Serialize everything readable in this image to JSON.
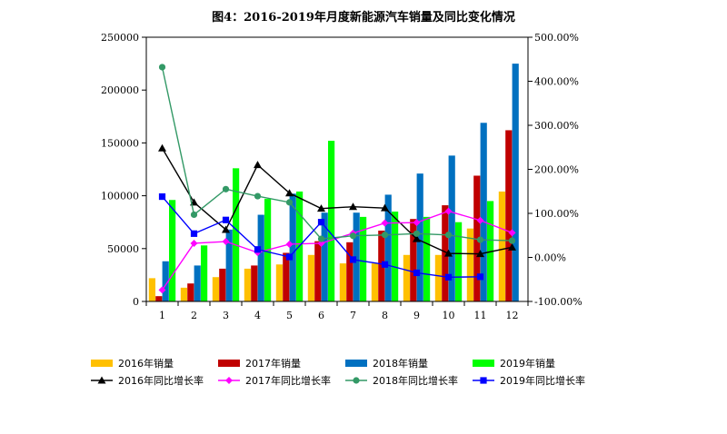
{
  "chart_data": {
    "type": "bar",
    "title": "图4：2016-2019年月度新能源汽车销量及同比变化情况",
    "categories": [
      "1",
      "2",
      "3",
      "4",
      "5",
      "6",
      "7",
      "8",
      "9",
      "10",
      "11",
      "12"
    ],
    "left_axis": {
      "ylim": [
        0,
        250000
      ],
      "ticks": [
        "0",
        "50000",
        "100000",
        "150000",
        "200000",
        "250000"
      ]
    },
    "right_axis": {
      "ylim": [
        -100,
        500
      ],
      "ticks": [
        "-100.00%",
        "0.00%",
        "100.00%",
        "200.00%",
        "300.00%",
        "400.00%",
        "500.00%"
      ]
    },
    "grid": false,
    "legend_position": "bottom",
    "bar_series": [
      {
        "name": "2016年销量",
        "color": "#FFC000",
        "values": [
          22000,
          13000,
          23000,
          31000,
          35000,
          44000,
          36000,
          36000,
          44000,
          44000,
          69000,
          104000
        ]
      },
      {
        "name": "2017年销量",
        "color": "#C00000",
        "values": [
          5000,
          17000,
          31000,
          34000,
          46000,
          57000,
          56000,
          67000,
          78000,
          91000,
          119000,
          162000
        ]
      },
      {
        "name": "2018年销量",
        "color": "#0070C0",
        "values": [
          38000,
          34000,
          68000,
          82000,
          102000,
          84000,
          84000,
          101000,
          121000,
          138000,
          169000,
          225000
        ]
      },
      {
        "name": "2019年销量",
        "color": "#00FF00",
        "values": [
          96000,
          53000,
          126000,
          97000,
          104000,
          152000,
          80000,
          85000,
          80000,
          75000,
          95000,
          null
        ]
      }
    ],
    "line_series": [
      {
        "name": "2016年同比增长率",
        "color": "#000000",
        "marker": "triangle",
        "values": [
          248,
          125,
          63,
          210,
          146,
          111,
          115,
          112,
          42,
          9,
          8,
          23
        ]
      },
      {
        "name": "2017年同比增长率",
        "color": "#FF00FF",
        "marker": "diamond",
        "values": [
          -74,
          32,
          36,
          11,
          30,
          32,
          55,
          78,
          79,
          105,
          84,
          56
        ]
      },
      {
        "name": "2018年同比增长率",
        "color": "#339966",
        "marker": "circle",
        "values": [
          432,
          97,
          155,
          139,
          125,
          42,
          49,
          51,
          54,
          51,
          40,
          38
        ]
      },
      {
        "name": "2019年同比增长率",
        "color": "#0000FF",
        "marker": "square",
        "values": [
          138,
          54,
          85,
          18,
          1,
          80,
          -5,
          -16,
          -35,
          -45,
          -44,
          null
        ]
      }
    ]
  }
}
